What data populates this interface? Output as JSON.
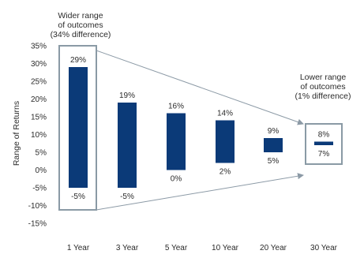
{
  "chart_data": {
    "type": "bar",
    "subtype": "floating-range",
    "categories": [
      "1 Year",
      "3 Year",
      "5 Year",
      "10 Year",
      "20 Year",
      "30 Year"
    ],
    "series": [
      {
        "high": [
          29,
          19,
          16,
          14,
          9,
          8
        ],
        "low": [
          -5,
          -5,
          0,
          2,
          5,
          7
        ],
        "high_labels": [
          "29%",
          "19%",
          "16%",
          "14%",
          "9%",
          "8%"
        ],
        "low_labels": [
          "-5%",
          "-5%",
          "0%",
          "2%",
          "5%",
          "7%"
        ]
      }
    ],
    "ylabel": "Range of Returns",
    "ylim": [
      -15,
      35
    ],
    "yticks": [
      35,
      30,
      25,
      20,
      15,
      10,
      5,
      0,
      -5,
      -10,
      -15
    ],
    "ytick_labels": [
      "35%",
      "30%",
      "25%",
      "20%",
      "15%",
      "10%",
      "5%",
      "0%",
      "-5%",
      "-10%",
      "-15%"
    ],
    "grid": false,
    "annotations": {
      "left": [
        "Wider range",
        "of outcomes",
        "(34% difference)"
      ],
      "right": [
        "Lower range",
        "of outcomes",
        "(1% difference)"
      ]
    },
    "colors": {
      "bar": "#0b3a78",
      "text": "#2b2b2b",
      "box": "#8a9aa5",
      "arrow": "#8c9aa6"
    }
  }
}
